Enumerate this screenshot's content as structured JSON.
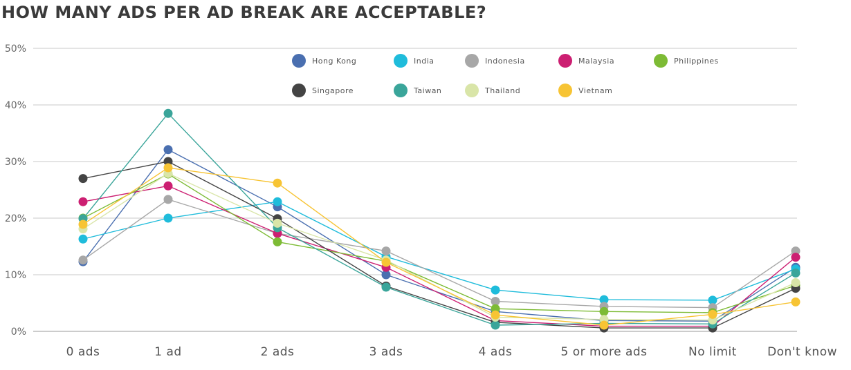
{
  "chart_data": {
    "type": "line",
    "title": "HOW MANY ADS PER AD BREAK ARE ACCEPTABLE?",
    "xlabel": "",
    "ylabel": "",
    "ylim": [
      0,
      50
    ],
    "yticks": [
      "0%",
      "10%",
      "20%",
      "30%",
      "40%",
      "50%"
    ],
    "categories": [
      "0 ads",
      "1 ad",
      "2 ads",
      "3 ads",
      "4 ads",
      "5 or more ads",
      "No limit",
      "Don't know"
    ],
    "grid": true,
    "legend_position": "top",
    "series": [
      {
        "name": "Hong Kong",
        "color": "#4a6fb0",
        "values": [
          12.3,
          32.1,
          22.0,
          10.0,
          3.5,
          1.9,
          1.8,
          11.3
        ]
      },
      {
        "name": "India",
        "color": "#1fbcdb",
        "values": [
          16.3,
          20.0,
          22.9,
          13.2,
          7.3,
          5.6,
          5.5,
          11.0
        ]
      },
      {
        "name": "Indonesia",
        "color": "#a7a7a7",
        "values": [
          12.6,
          23.3,
          17.3,
          14.2,
          5.3,
          4.4,
          4.2,
          14.2
        ]
      },
      {
        "name": "Malaysia",
        "color": "#cc1f72",
        "values": [
          22.9,
          25.7,
          17.3,
          11.3,
          1.9,
          0.9,
          0.9,
          13.1
        ]
      },
      {
        "name": "Philippines",
        "color": "#7dbb35",
        "values": [
          20.0,
          27.8,
          15.8,
          12.4,
          4.0,
          3.5,
          3.3,
          8.1
        ]
      },
      {
        "name": "Singapore",
        "color": "#444444",
        "values": [
          27.0,
          30.0,
          19.9,
          8.0,
          1.6,
          0.6,
          0.6,
          7.6
        ]
      },
      {
        "name": "Taiwan",
        "color": "#3aa59a",
        "values": [
          19.9,
          38.5,
          18.3,
          7.8,
          1.1,
          1.4,
          1.3,
          10.3
        ]
      },
      {
        "name": "Thailand",
        "color": "#d9e5a8",
        "values": [
          18.1,
          27.9,
          19.1,
          12.6,
          2.5,
          2.1,
          2.0,
          8.6
        ]
      },
      {
        "name": "Vietnam",
        "color": "#f7c434",
        "values": [
          18.9,
          28.9,
          26.2,
          12.2,
          2.9,
          1.1,
          3.0,
          5.2
        ]
      }
    ]
  }
}
